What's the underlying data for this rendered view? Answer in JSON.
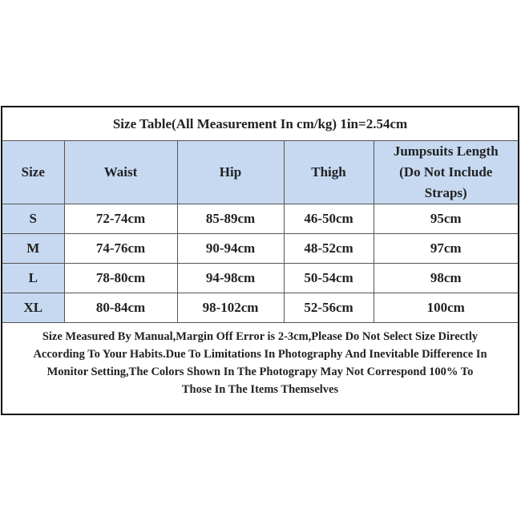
{
  "title": "Size Table(All Measurement In cm/kg) 1in=2.54cm",
  "headers": [
    "Size",
    "Waist",
    "Hip",
    "Thigh",
    "Jumpsuits Length (Do Not Include Straps)"
  ],
  "rows": [
    [
      "S",
      "72-74cm",
      "85-89cm",
      "46-50cm",
      "95cm"
    ],
    [
      "M",
      "74-76cm",
      "90-94cm",
      "48-52cm",
      "97cm"
    ],
    [
      "L",
      "78-80cm",
      "94-98cm",
      "50-54cm",
      "98cm"
    ],
    [
      "XL",
      "80-84cm",
      "98-102cm",
      "52-56cm",
      "100cm"
    ]
  ],
  "note_lines": [
    "Size Measured By Manual,Margin Off Error is 2-3cm,Please Do Not Select Size Directly",
    "According To Your Habits.Due To Limitations In Photography And Inevitable Difference In",
    "Monitor Setting,The Colors Shown In The Photograpy May Not Correspond 100% To",
    "Those In The Items Themselves"
  ],
  "colors": {
    "header_bg": "#c6d9f1",
    "border": "#111111"
  }
}
